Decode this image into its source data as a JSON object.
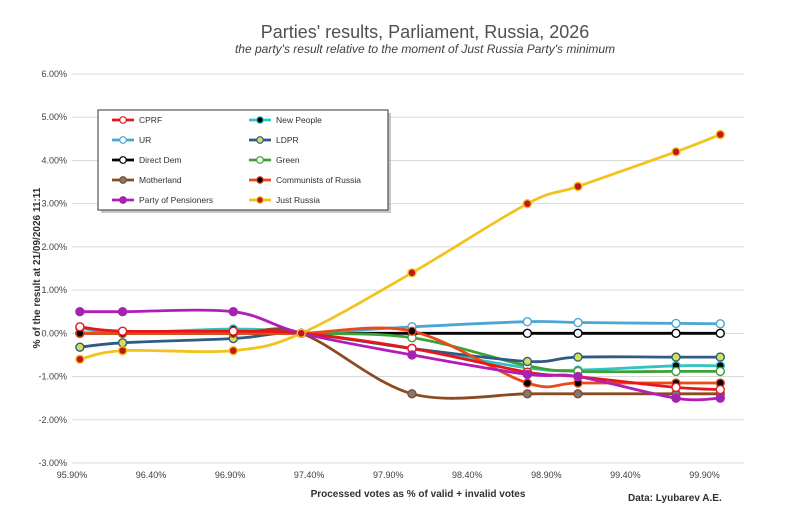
{
  "chart_data": {
    "type": "line",
    "title": "Parties' results, Parliament, Russia, 2026",
    "subtitle": "the party's result relative to the moment of Just Russia Party's minimum",
    "xlabel": "Processed votes as % of valid + invalid votes",
    "ylabel": "% of the result at 21/09/2026 11:11",
    "source_note": "Data: Lyubarev A.E.",
    "xlim": [
      95.9,
      100.15
    ],
    "ylim": [
      -3.0,
      6.0
    ],
    "x_ticks": [
      "95.90%",
      "96.40%",
      "96.90%",
      "97.40%",
      "97.90%",
      "98.40%",
      "98.90%",
      "99.40%",
      "99.90%"
    ],
    "x_tick_values": [
      95.9,
      96.4,
      96.9,
      97.4,
      97.9,
      98.4,
      98.9,
      99.4,
      99.9
    ],
    "y_ticks": [
      "-3.00%",
      "-2.00%",
      "-1.00%",
      "0.00%",
      "1.00%",
      "2.00%",
      "3.00%",
      "4.00%",
      "5.00%",
      "6.00%"
    ],
    "y_tick_values": [
      -3,
      -2,
      -1,
      0,
      1,
      2,
      3,
      4,
      5,
      6
    ],
    "x": [
      95.95,
      96.22,
      96.92,
      97.35,
      98.05,
      98.78,
      99.1,
      99.72,
      100.0
    ],
    "grid": "horizontal",
    "legend_position": "top-left",
    "series": [
      {
        "name": "CPRF",
        "color": "#e8161b",
        "marker_fill": "#ffffff",
        "values": [
          0.15,
          0.05,
          0.05,
          0.0,
          -0.35,
          -0.9,
          -1.0,
          -1.25,
          -1.3
        ]
      },
      {
        "name": "New People",
        "color": "#33c4c0",
        "marker_fill": "#000000",
        "values": [
          0.0,
          0.0,
          0.1,
          0.0,
          -0.35,
          -0.8,
          -0.85,
          -0.75,
          -0.75
        ]
      },
      {
        "name": "UR",
        "color": "#4ba6d5",
        "marker_fill": "#ffffff",
        "values": [
          0.12,
          0.02,
          0.02,
          0.0,
          0.15,
          0.27,
          0.25,
          0.23,
          0.22
        ]
      },
      {
        "name": "LDPR",
        "color": "#2e5a84",
        "marker_fill": "#d4e157",
        "values": [
          -0.32,
          -0.22,
          -0.12,
          0.0,
          -0.35,
          -0.65,
          -0.55,
          -0.55,
          -0.55
        ]
      },
      {
        "name": "Direct Dem",
        "color": "#000000",
        "marker_fill": "#ffffff",
        "values": [
          0.0,
          0.0,
          0.0,
          0.0,
          0.0,
          0.0,
          0.0,
          0.0,
          0.0
        ]
      },
      {
        "name": "Green",
        "color": "#3fa03a",
        "marker_fill": "#ffffff",
        "values": [
          0.0,
          0.0,
          0.0,
          0.0,
          -0.1,
          -0.75,
          -0.88,
          -0.88,
          -0.88
        ]
      },
      {
        "name": "Motherland",
        "color": "#8b4b22",
        "marker_fill": "#7a7a7a",
        "values": [
          0.0,
          0.0,
          0.0,
          0.0,
          -1.4,
          -1.4,
          -1.4,
          -1.4,
          -1.4
        ]
      },
      {
        "name": "Communists of Russia",
        "color": "#e84a18",
        "marker_fill": "#000000",
        "values": [
          0.0,
          0.0,
          0.0,
          0.0,
          0.05,
          -1.15,
          -1.15,
          -1.15,
          -1.15
        ]
      },
      {
        "name": "Party of Pensioners",
        "color": "#b21db8",
        "marker_fill": "#9b27af",
        "values": [
          0.5,
          0.5,
          0.5,
          0.0,
          -0.5,
          -0.95,
          -1.0,
          -1.5,
          -1.5
        ]
      },
      {
        "name": "Just Russia",
        "color": "#f2c31c",
        "marker_fill": "#c0161e",
        "values": [
          -0.6,
          -0.4,
          -0.4,
          0.0,
          1.4,
          3.0,
          3.4,
          4.2,
          4.6
        ]
      }
    ]
  }
}
